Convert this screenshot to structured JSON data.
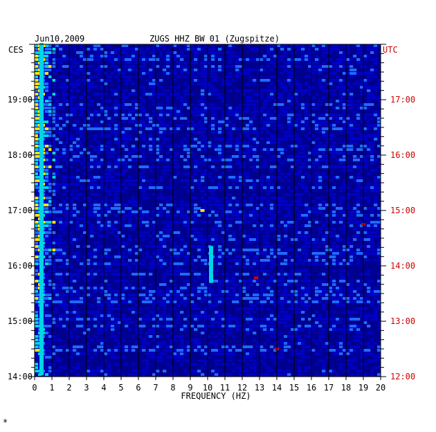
{
  "chart_data": {
    "type": "heatmap",
    "date": "Jun10,2009",
    "title": "ZUGS HHZ BW 01 (Zugspitze)",
    "left_timezone": "CES",
    "right_timezone": "UTC",
    "xlabel": "FREQUENCY (HZ)",
    "xlim": [
      0,
      20
    ],
    "x_ticks": [
      "0",
      "1",
      "2",
      "3",
      "4",
      "5",
      "6",
      "7",
      "8",
      "9",
      "10",
      "11",
      "12",
      "13",
      "14",
      "15",
      "16",
      "17",
      "18",
      "19",
      "20"
    ],
    "left_time_ticks": [
      "19:00",
      "18:00",
      "17:00",
      "16:00",
      "15:00",
      "14:00"
    ],
    "right_time_ticks": [
      "17:00",
      "16:00",
      "15:00",
      "14:00",
      "13:00",
      "12:00"
    ],
    "time_range_ces": [
      "14:00",
      "20:00"
    ],
    "colors": {
      "background": "#00008f",
      "low": "#0000c8",
      "mid": "#1e6bff",
      "high": "#00d4e6",
      "peak": "#ffe600",
      "max": "#d40000",
      "grid": "#000000",
      "utc_labels": "#cc0000"
    },
    "features": [
      {
        "frequency_hz": 0.4,
        "time": "14:00-20:00",
        "level": "high"
      },
      {
        "frequency_hz": 9.7,
        "time": "17:00",
        "level": "peak"
      },
      {
        "frequency_hz": 10.2,
        "time": "15:40-16:20",
        "level": "high"
      },
      {
        "frequency_hz": 12.8,
        "time": "15:47",
        "level": "max"
      },
      {
        "frequency_hz": 19.0,
        "time": "16:45",
        "level": "max"
      },
      {
        "frequency_hz": 14.0,
        "time": "14:30",
        "level": "max"
      }
    ]
  },
  "footer_mark": "*"
}
